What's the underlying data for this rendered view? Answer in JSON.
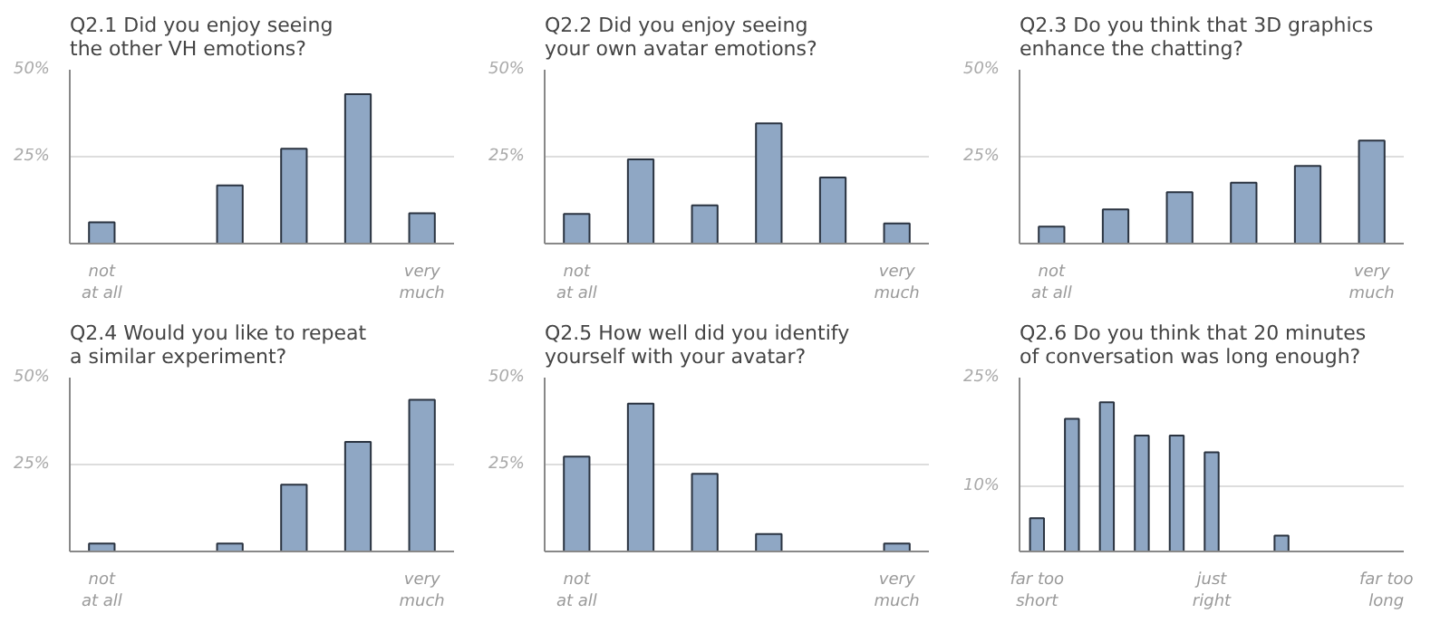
{
  "chart_data": [
    {
      "type": "bar",
      "title": "Q2.1 Did you enjoy seeing\nthe other VH emotions?",
      "categories": [
        "not\nat all",
        null,
        null,
        null,
        null,
        "very\nmuch"
      ],
      "values": [
        6.1,
        null,
        16.7,
        27.3,
        43,
        8.7
      ],
      "color": "#8fa7c4",
      "ylim": [
        0,
        50
      ],
      "yticks": [
        {
          "value": 25,
          "label": "25%"
        },
        {
          "value": 50,
          "label": "50%"
        }
      ],
      "grid": "y"
    },
    {
      "type": "bar",
      "title": "Q2.2 Did you enjoy seeing\nyour own avatar emotions?",
      "categories": [
        "not\nat all",
        null,
        null,
        null,
        null,
        "very\nmuch"
      ],
      "values": [
        8.5,
        24.2,
        11,
        34.6,
        19,
        5.8
      ],
      "color": "#8fa7c4",
      "ylim": [
        0,
        50
      ],
      "yticks": [
        {
          "value": 25,
          "label": "25%"
        },
        {
          "value": 50,
          "label": "50%"
        }
      ],
      "grid": "y"
    },
    {
      "type": "bar",
      "title": "Q2.3 Do you think that 3D graphics\nenhance the chatting?",
      "categories": [
        "not\nat all",
        null,
        null,
        null,
        null,
        "very\nmuch"
      ],
      "values": [
        4.9,
        9.8,
        14.8,
        17.5,
        22.3,
        29.6
      ],
      "color": "#8fa7c4",
      "ylim": [
        0,
        50
      ],
      "yticks": [
        {
          "value": 25,
          "label": "25%"
        },
        {
          "value": 50,
          "label": "50%"
        }
      ],
      "grid": "y"
    },
    {
      "type": "bar",
      "title": "Q2.4 Would you like to repeat\na similar experiment?",
      "categories": [
        "not\nat all",
        null,
        null,
        null,
        null,
        "very\nmuch"
      ],
      "values": [
        2.3,
        null,
        2.3,
        19.2,
        31.5,
        43.6
      ],
      "color": "#8fa7c4",
      "ylim": [
        0,
        50
      ],
      "yticks": [
        {
          "value": 25,
          "label": "25%"
        },
        {
          "value": 50,
          "label": "50%"
        }
      ],
      "grid": "y"
    },
    {
      "type": "bar",
      "title": "Q2.5 How well did you identify\nyourself with your avatar?",
      "categories": [
        "not\nat all",
        null,
        null,
        null,
        null,
        "very\nmuch"
      ],
      "values": [
        27.3,
        42.5,
        22.3,
        5,
        null,
        2.3
      ],
      "color": "#8fa7c4",
      "ylim": [
        0,
        50
      ],
      "yticks": [
        {
          "value": 25,
          "label": "25%"
        },
        {
          "value": 50,
          "label": "50%"
        }
      ],
      "grid": "y"
    },
    {
      "type": "bar",
      "title": "Q2.6 Do you think that 20 minutes\nof conversation was long enough?",
      "categories": [
        "far too\nshort",
        null,
        null,
        null,
        null,
        "just\nright",
        null,
        null,
        null,
        null,
        "far too\nlong"
      ],
      "values": [
        5.6,
        19.3,
        21.6,
        17,
        17,
        14.7,
        null,
        3.2,
        null,
        null,
        null
      ],
      "color": "#8fa7c4",
      "ylim": [
        1,
        25
      ],
      "yticks": [
        {
          "value": 10,
          "label": "10%"
        },
        {
          "value": 25,
          "label": "25%"
        }
      ],
      "grid": "y"
    }
  ]
}
